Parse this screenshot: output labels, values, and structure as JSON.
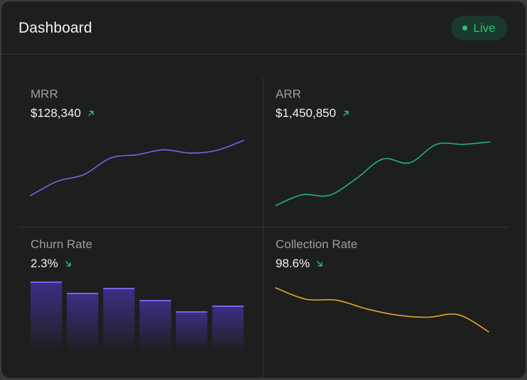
{
  "header": {
    "title": "Dashboard",
    "status_badge": "Live"
  },
  "colors": {
    "background": "#1d1e1e",
    "accent_green": "#27c07a",
    "purple": "#7a63e6",
    "green_line": "#23b179",
    "yellow_line": "#e6a526"
  },
  "cards": [
    {
      "label": "MRR",
      "value": "$128,340",
      "trend_icon": "arrow-up-right-icon",
      "chart_type": "line",
      "series": [
        0.0,
        0.26,
        0.38,
        0.68,
        0.74,
        0.83,
        0.77,
        0.82,
        1.0
      ]
    },
    {
      "label": "ARR",
      "value": "$1,450,850",
      "trend_icon": "arrow-up-right-icon",
      "chart_type": "line",
      "series": [
        0.0,
        0.17,
        0.16,
        0.42,
        0.73,
        0.67,
        0.96,
        0.96,
        1.0
      ]
    },
    {
      "label": "Churn Rate",
      "value": "2.3%",
      "trend_icon": "arrow-down-right-icon",
      "chart_type": "bar",
      "series": [
        1.0,
        0.84,
        0.91,
        0.74,
        0.58,
        0.66
      ]
    },
    {
      "label": "Collection Rate",
      "value": "98.6%",
      "trend_icon": "arrow-down-right-icon",
      "chart_type": "line",
      "series": [
        1.0,
        0.74,
        0.72,
        0.52,
        0.38,
        0.33,
        0.39,
        0.0
      ]
    }
  ]
}
